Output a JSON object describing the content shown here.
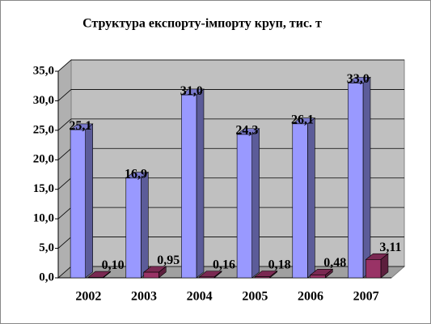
{
  "chart_data": {
    "type": "bar3d",
    "title": "Структура експорту-імпорту круп, тис. т",
    "categories": [
      "2002",
      "2003",
      "2004",
      "2005",
      "2006",
      "2007"
    ],
    "series": [
      {
        "color": "#9999ff",
        "values": [
          25.1,
          16.9,
          31.0,
          24.3,
          26.1,
          33.0
        ],
        "value_labels": [
          "25,1",
          "16,9",
          "31,0",
          "24,3",
          "26,1",
          "33,0"
        ]
      },
      {
        "color": "#993366",
        "values": [
          0.1,
          0.95,
          0.16,
          0.18,
          0.48,
          3.11
        ],
        "value_labels": [
          "0,10",
          "0,95",
          "0,16",
          "0,18",
          "0,48",
          "3,11"
        ]
      }
    ],
    "ylim": [
      0,
      35
    ],
    "yticks": [
      {
        "value": 0,
        "label": "0,0"
      },
      {
        "value": 5,
        "label": "5,0"
      },
      {
        "value": 10,
        "label": "10,0"
      },
      {
        "value": 15,
        "label": "15,0"
      },
      {
        "value": 20,
        "label": "20,0"
      },
      {
        "value": 25,
        "label": "25,0"
      },
      {
        "value": 30,
        "label": "30,0"
      },
      {
        "value": 35,
        "label": "35,0"
      }
    ],
    "grid": true
  }
}
